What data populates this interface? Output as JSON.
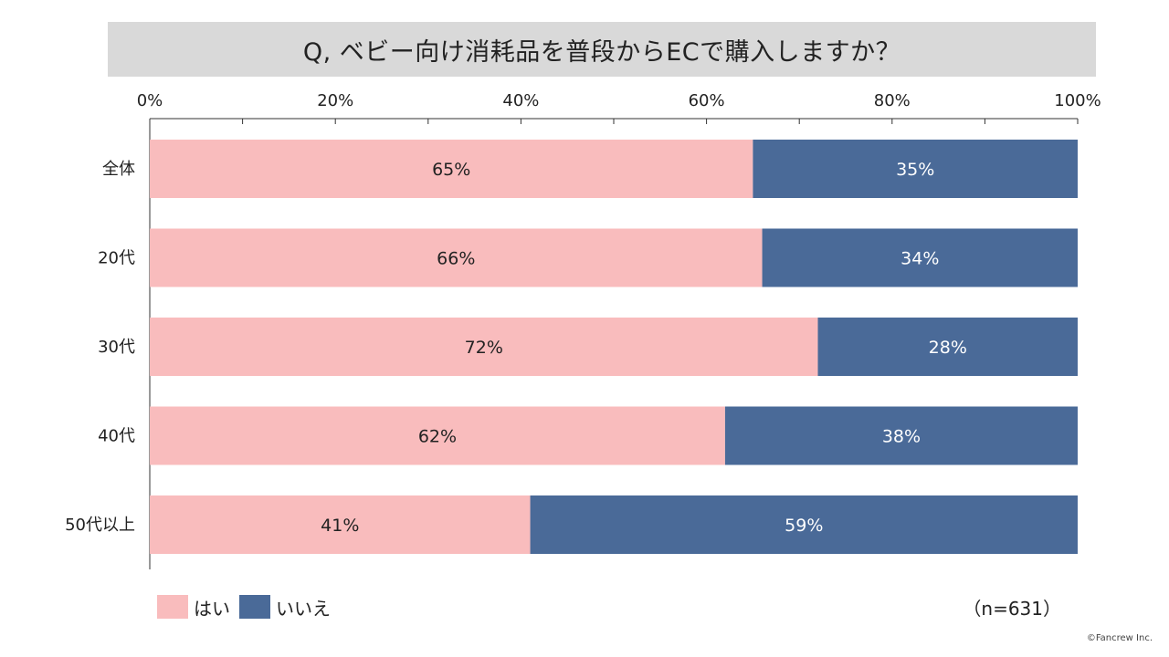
{
  "colors": {
    "yes": "#f9bcbd",
    "no": "#4a6a98",
    "yes_label": "#222222",
    "no_label": "#ffffff",
    "axis": "#333333",
    "title_bg": "#d9d9d9"
  },
  "footer": {
    "sample_size": "（n=631）",
    "copyright": "©Fancrew Inc."
  },
  "chart_data": {
    "type": "bar",
    "orientation": "horizontal",
    "stacked": true,
    "title": "Q, ベビー向け消耗品を普段からECで購入しますか？",
    "categories": [
      "全体",
      "20代",
      "30代",
      "40代",
      "50代以上"
    ],
    "series": [
      {
        "name": "はい",
        "values": [
          65,
          66,
          72,
          62,
          41
        ],
        "labels": [
          "65%",
          "66%",
          "72%",
          "62%",
          "41%"
        ]
      },
      {
        "name": "いいえ",
        "values": [
          35,
          34,
          28,
          38,
          59
        ],
        "labels": [
          "35%",
          "34%",
          "28%",
          "38%",
          "59%"
        ]
      }
    ],
    "xlim": [
      0,
      100
    ],
    "ticks": [
      0,
      20,
      40,
      60,
      80,
      100
    ],
    "tick_labels": [
      "0%",
      "20%",
      "40%",
      "60%",
      "80%",
      "100%"
    ],
    "legend_position": "bottom-left",
    "grid": false
  }
}
